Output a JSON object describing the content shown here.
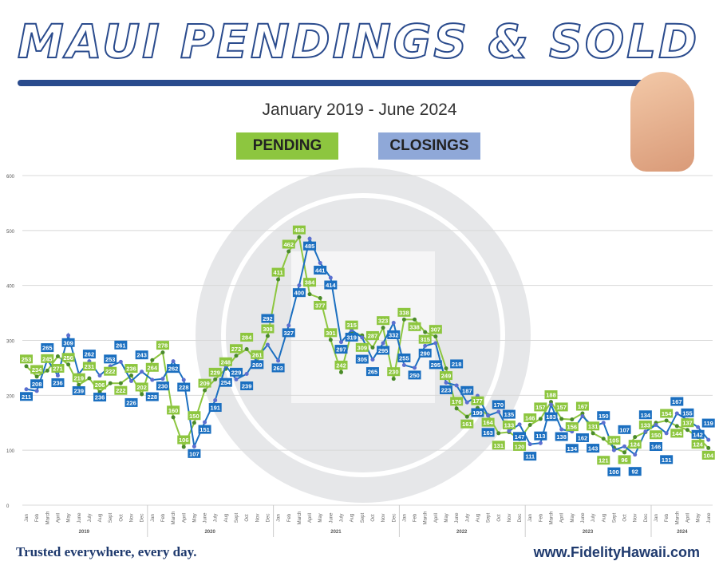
{
  "title": "MAUI PENDINGS & SOLD",
  "subtitle": "January 2019 - June 2024",
  "footer": {
    "tagline": "Trusted everywhere, every day.",
    "url": "www.FidelityHawaii.com"
  },
  "colors": {
    "pending": "#8dc63f",
    "closings": "#1b6fc0"
  },
  "chart_data": {
    "type": "line",
    "title": "MAUI PENDINGS & SOLD",
    "ylim": [
      0,
      600
    ],
    "yticks": [
      0,
      100,
      200,
      300,
      400,
      500,
      600
    ],
    "months": [
      "Jan",
      "Feb",
      "March",
      "April",
      "May",
      "June",
      "July",
      "Aug",
      "Sept",
      "Oct",
      "Nov",
      "Dec"
    ],
    "years": [
      "2019",
      "2020",
      "2021",
      "2022",
      "2023",
      "2024"
    ],
    "legend": [
      "PENDING",
      "CLOSINGS"
    ],
    "series": [
      {
        "name": "PENDING",
        "values": [
          253,
          234,
          245,
          271,
          256,
          219,
          231,
          206,
          222,
          222,
          236,
          202,
          264,
          278,
          160,
          106,
          150,
          209,
          229,
          248,
          272,
          284,
          261,
          308,
          411,
          462,
          488,
          384,
          377,
          301,
          242,
          315,
          309,
          287,
          323,
          230,
          338,
          338,
          315,
          307,
          249,
          176,
          161,
          177,
          164,
          131,
          133,
          120,
          146,
          157,
          188,
          157,
          156,
          167,
          131,
          121,
          105,
          96,
          124,
          133,
          150,
          154,
          144,
          137,
          124,
          104
        ]
      },
      {
        "name": "CLOSINGS",
        "values": [
          211,
          208,
          265,
          236,
          309,
          239,
          262,
          236,
          253,
          261,
          226,
          243,
          228,
          230,
          262,
          228,
          107,
          151,
          191,
          254,
          229,
          239,
          269,
          292,
          263,
          327,
          400,
          485,
          441,
          414,
          297,
          319,
          305,
          265,
          295,
          332,
          255,
          250,
          290,
          295,
          223,
          218,
          187,
          199,
          163,
          170,
          135,
          147,
          111,
          113,
          183,
          138,
          134,
          162,
          143,
          150,
          100,
          107,
          92,
          134,
          146,
          131,
          167,
          155,
          142,
          119
        ]
      }
    ]
  }
}
